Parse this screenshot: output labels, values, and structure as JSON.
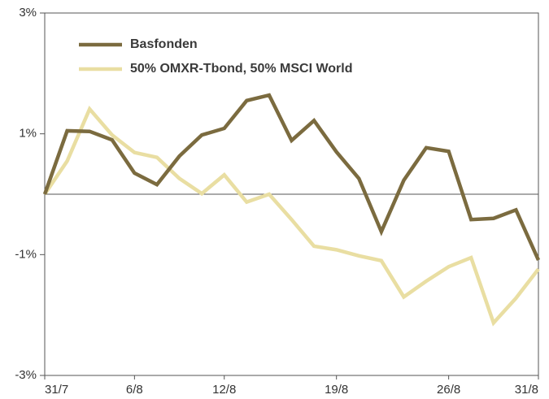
{
  "chart_data": {
    "type": "line",
    "categories": [
      "31/7",
      null,
      null,
      null,
      "6/8",
      null,
      null,
      null,
      "12/8",
      null,
      null,
      null,
      null,
      "19/8",
      null,
      null,
      null,
      null,
      "26/8",
      null,
      null,
      null,
      "31/8"
    ],
    "series": [
      {
        "name": "Basfonden",
        "color": "#7b6b3f",
        "values": [
          0,
          1.05,
          1.04,
          0.9,
          0.35,
          0.16,
          0.63,
          0.98,
          1.09,
          1.55,
          1.64,
          0.89,
          1.22,
          0.7,
          0.26,
          -0.62,
          0.23,
          0.77,
          0.71,
          -0.42,
          -0.4,
          -0.26,
          -1.09
        ]
      },
      {
        "name": "50% OMXR-Tbond, 50% MSCI World",
        "color": "#e9dea2",
        "values": [
          0,
          0.55,
          1.41,
          0.98,
          0.69,
          0.61,
          0.26,
          0.01,
          0.32,
          -0.13,
          0,
          -0.42,
          -0.86,
          -0.92,
          -1.02,
          -1.1,
          -1.7,
          -1.44,
          -1.2,
          -1.05,
          -2.13,
          -1.72,
          -1.24
        ]
      }
    ],
    "ylim": [
      -3,
      3
    ],
    "yticks": [
      {
        "value": 3,
        "label": "3%"
      },
      {
        "value": 1,
        "label": "1%"
      },
      {
        "value": -1,
        "label": "-1%"
      },
      {
        "value": -3,
        "label": "-3%"
      }
    ],
    "legend": "upper left"
  }
}
